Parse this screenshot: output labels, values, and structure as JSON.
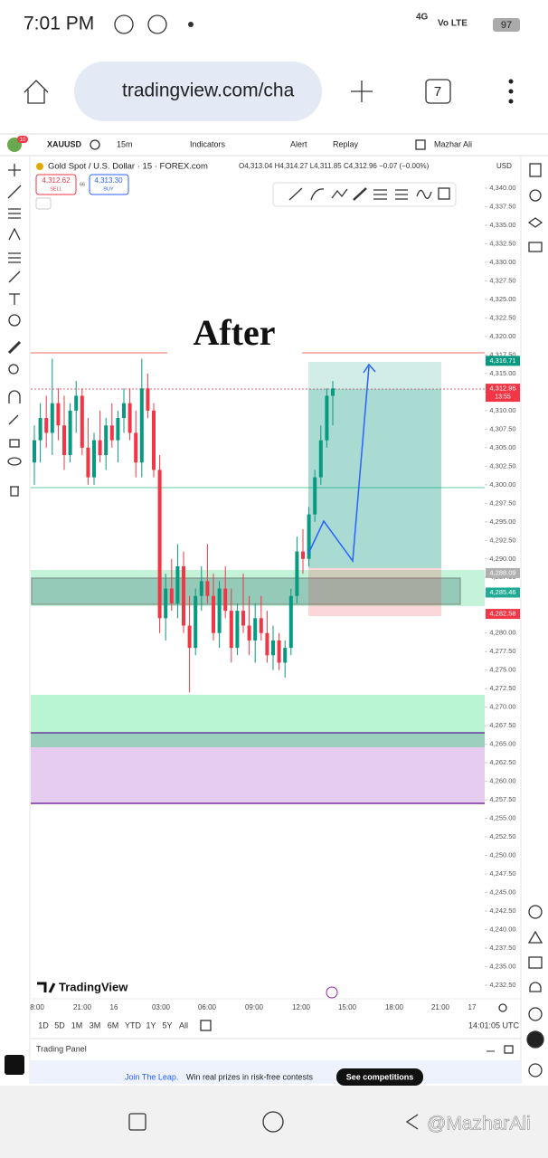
{
  "status_bar": {
    "time": "7:01 PM",
    "network": "4G",
    "carrier": "Vo LTE",
    "battery": "97"
  },
  "browser": {
    "url": "tradingview.com/cha",
    "tabs": "7"
  },
  "toolbar": {
    "badge": "10",
    "symbol": "XAUUSD",
    "interval": "15m",
    "indicators": "Indicators",
    "alert": "Alert",
    "replay": "Replay",
    "user": "Mazhar Ali"
  },
  "legend": {
    "title": "Gold Spot / U.S. Dollar · 15 · FOREX.com",
    "ohlc": "O4,313.04 H4,314.27 L4,311.85 C4,312.96 −0.07 (−0.00%)",
    "sell_price": "4,312.62",
    "sell": "SELL",
    "spread": "66",
    "buy_price": "4,313.30",
    "buy": "BUY"
  },
  "currency": "USD",
  "annotation": "After",
  "chart": {
    "price_ticks": [
      {
        "value": 4340,
        "label": "4,340.00"
      },
      {
        "value": 4337.5,
        "label": "4,337.50"
      },
      {
        "value": 4335,
        "label": "4,335.00"
      },
      {
        "value": 4332.5,
        "label": "4,332.50"
      },
      {
        "value": 4330,
        "label": "4,330.00"
      },
      {
        "value": 4327.5,
        "label": "4,327.50"
      },
      {
        "value": 4325,
        "label": "4,325.00"
      },
      {
        "value": 4322.5,
        "label": "4,322.50"
      },
      {
        "value": 4320,
        "label": "4,320.00"
      },
      {
        "value": 4317.5,
        "label": "4,317.50"
      },
      {
        "value": 4315,
        "label": "4,315.00"
      },
      {
        "value": 4312.5,
        "label": "4,312.50"
      },
      {
        "value": 4310,
        "label": "4,310.00"
      },
      {
        "value": 4307.5,
        "label": "4,307.50"
      },
      {
        "value": 4305,
        "label": "4,305.00"
      },
      {
        "value": 4302.5,
        "label": "4,302.50"
      },
      {
        "value": 4300,
        "label": "4,300.00"
      },
      {
        "value": 4297.5,
        "label": "4,297.50"
      },
      {
        "value": 4295,
        "label": "4,295.00"
      },
      {
        "value": 4292.5,
        "label": "4,292.50"
      },
      {
        "value": 4290,
        "label": "4,290.00"
      },
      {
        "value": 4287.5,
        "label": "4,287.50"
      },
      {
        "value": 4285,
        "label": "4,285.00"
      },
      {
        "value": 4282.5,
        "label": "4,282.50"
      },
      {
        "value": 4280,
        "label": "4,280.00"
      },
      {
        "value": 4277.5,
        "label": "4,277.50"
      },
      {
        "value": 4275,
        "label": "4,275.00"
      },
      {
        "value": 4272.5,
        "label": "4,272.50"
      },
      {
        "value": 4270,
        "label": "4,270.00"
      },
      {
        "value": 4267.5,
        "label": "4,267.50"
      },
      {
        "value": 4265,
        "label": "4,265.00"
      },
      {
        "value": 4262.5,
        "label": "4,262.50"
      },
      {
        "value": 4260,
        "label": "4,260.00"
      },
      {
        "value": 4257.5,
        "label": "4,257.50"
      },
      {
        "value": 4255,
        "label": "4,255.00"
      },
      {
        "value": 4252.5,
        "label": "4,252.50"
      },
      {
        "value": 4250,
        "label": "4,250.00"
      },
      {
        "value": 4247.5,
        "label": "4,247.50"
      },
      {
        "value": 4245,
        "label": "4,245.00"
      },
      {
        "value": 4242.5,
        "label": "4,242.50"
      },
      {
        "value": 4240,
        "label": "4,240.00"
      },
      {
        "value": 4237.5,
        "label": "4,237.50"
      },
      {
        "value": 4235,
        "label": "4,235.00"
      },
      {
        "value": 4232.5,
        "label": "4,232.50"
      }
    ],
    "tags": [
      {
        "value": 4316.71,
        "label": "4,316.71",
        "color": "#089981"
      },
      {
        "value": 4312.96,
        "label": "4,312.96",
        "sub": "13:55",
        "color": "#f23645"
      },
      {
        "value": 4288.09,
        "label": "4,288.09",
        "color": "#b0b0b0"
      },
      {
        "value": 4285.46,
        "label": "4,285.46",
        "color": "#22ab94"
      },
      {
        "value": 4282.58,
        "label": "4,282.58",
        "color": "#f23645"
      }
    ],
    "candles": [
      [
        4303,
        4308,
        4300,
        4306
      ],
      [
        4306,
        4311,
        4303,
        4309
      ],
      [
        4309,
        4312,
        4305,
        4307
      ],
      [
        4307,
        4317,
        4304,
        4311
      ],
      [
        4311,
        4313,
        4306,
        4308
      ],
      [
        4308,
        4312,
        4302,
        4304
      ],
      [
        4304,
        4311,
        4303,
        4310
      ],
      [
        4310,
        4314,
        4307,
        4312
      ],
      [
        4312,
        4313,
        4304,
        4305
      ],
      [
        4305,
        4309,
        4300,
        4301
      ],
      [
        4301,
        4307,
        4300,
        4306
      ],
      [
        4306,
        4310,
        4303,
        4304
      ],
      [
        4304,
        4309,
        4302,
        4308
      ],
      [
        4308,
        4311,
        4305,
        4306
      ],
      [
        4306,
        4310,
        4303,
        4309
      ],
      [
        4309,
        4313,
        4307,
        4311
      ],
      [
        4311,
        4313,
        4306,
        4307
      ],
      [
        4307,
        4310,
        4301,
        4303
      ],
      [
        4303,
        4317,
        4301,
        4313
      ],
      [
        4313,
        4315,
        4309,
        4310
      ],
      [
        4310,
        4311,
        4301,
        4302
      ],
      [
        4302,
        4304,
        4280,
        4282
      ],
      [
        4282,
        4288,
        4279,
        4286
      ],
      [
        4286,
        4290,
        4283,
        4284
      ],
      [
        4284,
        4292,
        4282,
        4289
      ],
      [
        4289,
        4291,
        4280,
        4281
      ],
      [
        4281,
        4285,
        4272,
        4278
      ],
      [
        4278,
        4286,
        4277,
        4285
      ],
      [
        4285,
        4289,
        4283,
        4287
      ],
      [
        4287,
        4292,
        4284,
        4285
      ],
      [
        4285,
        4288,
        4279,
        4280
      ],
      [
        4280,
        4287,
        4278,
        4286
      ],
      [
        4286,
        4289,
        4282,
        4283
      ],
      [
        4283,
        4286,
        4276,
        4278
      ],
      [
        4278,
        4284,
        4277,
        4283
      ],
      [
        4283,
        4288,
        4280,
        4281
      ],
      [
        4281,
        4285,
        4277,
        4279
      ],
      [
        4279,
        4284,
        4276,
        4282
      ],
      [
        4282,
        4285,
        4279,
        4280
      ],
      [
        4280,
        4283,
        4276,
        4277
      ],
      [
        4277,
        4281,
        4275,
        4279
      ],
      [
        4279,
        4280,
        4275,
        4276
      ],
      [
        4276,
        4279,
        4274,
        4278
      ],
      [
        4278,
        4286,
        4277,
        4285
      ],
      [
        4285,
        4293,
        4284,
        4291
      ],
      [
        4291,
        4294,
        4288,
        4290
      ],
      [
        4290,
        4297,
        4289,
        4296
      ],
      [
        4296,
        4302,
        4295,
        4301
      ],
      [
        4301,
        4308,
        4300,
        4306
      ],
      [
        4306,
        4313,
        4305,
        4312
      ],
      [
        4312,
        4314,
        4308,
        4313
      ]
    ]
  },
  "time_labels": [
    "8:00",
    "21:00",
    "16",
    "03:00",
    "06:00",
    "09:00",
    "12:00",
    "15:00",
    "18:00",
    "21:00",
    "17"
  ],
  "timeframes": [
    "1D",
    "5D",
    "1M",
    "3M",
    "6M",
    "YTD",
    "1Y",
    "5Y",
    "All"
  ],
  "clock": "14:01:05 UTC",
  "logo": "TradingView",
  "panel": "Trading Panel",
  "banner": {
    "link": "Join The Leap.",
    "text": "Win real prizes in risk-free contests",
    "button": "See competitions"
  },
  "watermark": "@MazharAli"
}
